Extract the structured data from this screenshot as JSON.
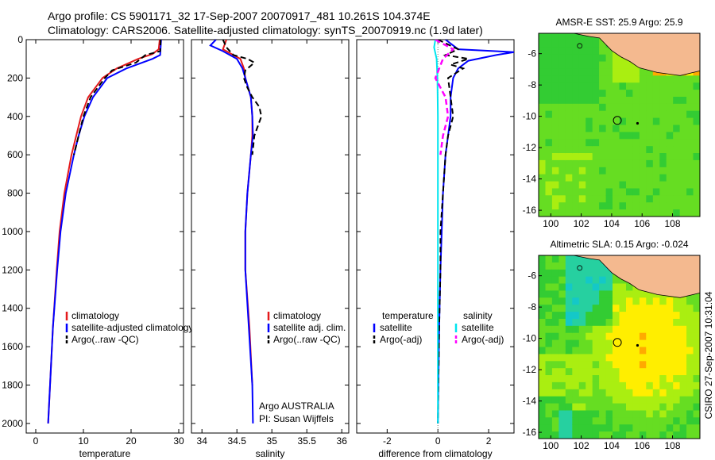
{
  "header": {
    "line1": "Argo profile: CS 5901171_32 17-Sep-2007 20070917_481 10.261S 104.374E",
    "line2": "Climatology: CARS2006. Satellite-adjusted climatology: synTS_20070919.nc (1.9d later)"
  },
  "colors": {
    "climatology": "#e41a1c",
    "satellite": "#0000ff",
    "argo": "#000000",
    "salinity_satellite": "#00e5ee",
    "salinity_argo": "#ff00ff",
    "land": "#f4b98f",
    "sea": "#22cc22"
  },
  "chart_data": [
    {
      "type": "line",
      "id": "temperature",
      "xlabel": "temperature",
      "ylabel": "",
      "xlim": [
        -2,
        31
      ],
      "ylim": [
        2050,
        0
      ],
      "xticks": [
        0,
        10,
        20,
        30
      ],
      "yticks": [
        0,
        200,
        400,
        600,
        800,
        1000,
        1200,
        1400,
        1600,
        1800,
        2000
      ],
      "legend": {
        "placement": "lower-right",
        "entries": [
          "climatology",
          "satellite-adjusted climatology",
          "Argo(..raw -QC)"
        ]
      },
      "series": [
        {
          "name": "climatology",
          "style": "solid",
          "depth": [
            0,
            50,
            75,
            100,
            150,
            200,
            300,
            400,
            500,
            600,
            800,
            1000,
            1200,
            1500,
            1800,
            2000
          ],
          "values": [
            26.0,
            25.8,
            24.5,
            21.5,
            17.0,
            14.0,
            11.0,
            9.5,
            8.5,
            7.5,
            6.0,
            5.0,
            4.4,
            3.6,
            3.0,
            2.6
          ]
        },
        {
          "name": "satellite-adjusted climatology",
          "style": "solid",
          "depth": [
            0,
            80,
            100,
            150,
            200,
            300,
            400,
            500,
            600,
            800,
            1000,
            1200,
            1500,
            1800,
            2000
          ],
          "values": [
            26.3,
            26.1,
            24.5,
            19.0,
            15.0,
            12.0,
            10.2,
            9.0,
            8.0,
            6.3,
            5.2,
            4.5,
            3.6,
            3.0,
            2.6
          ]
        },
        {
          "name": "Argo(..raw -QC)",
          "style": "dashed",
          "depth": [
            0,
            60,
            80,
            120,
            160,
            200,
            300,
            400,
            500,
            600
          ],
          "values": [
            26.2,
            26.1,
            23.0,
            21.0,
            16.0,
            14.5,
            11.5,
            10.0,
            9.0,
            8.0
          ]
        }
      ]
    },
    {
      "type": "line",
      "id": "salinity",
      "xlabel": "salinity",
      "ylabel": "",
      "xlim": [
        33.85,
        36.1
      ],
      "ylim": [
        2050,
        0
      ],
      "xticks": [
        34,
        34.5,
        35,
        35.5,
        36
      ],
      "yticks": [
        0,
        200,
        400,
        600,
        800,
        1000,
        1200,
        1400,
        1600,
        1800,
        2000
      ],
      "legend": {
        "placement": "lower-right",
        "entries": [
          "climatology",
          "satellite adj. clim.",
          "Argo(..raw -QC)"
        ]
      },
      "annotation": [
        "Argo AUSTRALIA",
        "PI: Susan Wijffels"
      ],
      "series": [
        {
          "name": "climatology",
          "style": "solid",
          "depth": [
            0,
            50,
            100,
            150,
            200,
            300,
            400,
            500,
            600,
            800,
            1000,
            1200,
            1500,
            1800
          ],
          "values": [
            34.35,
            34.3,
            34.55,
            34.6,
            34.62,
            34.7,
            34.72,
            34.72,
            34.7,
            34.65,
            34.62,
            34.62,
            34.68,
            34.72
          ]
        },
        {
          "name": "satellite adj. clim.",
          "style": "solid",
          "depth": [
            0,
            30,
            60,
            100,
            150,
            200,
            300,
            400,
            500,
            600,
            800,
            1000,
            1200,
            1500,
            1800,
            2000
          ],
          "values": [
            34.2,
            34.12,
            34.3,
            34.5,
            34.58,
            34.62,
            34.7,
            34.72,
            34.73,
            34.7,
            34.65,
            34.62,
            34.62,
            34.67,
            34.72,
            34.73
          ]
        },
        {
          "name": "Argo(..raw -QC)",
          "style": "dashed",
          "depth": [
            0,
            40,
            80,
            100,
            120,
            160,
            200,
            250,
            300,
            350,
            400,
            450,
            500,
            600
          ],
          "values": [
            34.3,
            34.35,
            34.45,
            34.65,
            34.75,
            34.62,
            34.6,
            34.65,
            34.72,
            34.82,
            34.85,
            34.8,
            34.75,
            34.72
          ]
        }
      ]
    },
    {
      "type": "line",
      "id": "difference",
      "xlabel": "difference from climatology",
      "ylabel": "",
      "xlim": [
        -3.2,
        3
      ],
      "ylim": [
        2050,
        0
      ],
      "xticks": [
        -2,
        0,
        2
      ],
      "yticks": [
        0,
        200,
        400,
        600,
        800,
        1000,
        1200,
        1400,
        1600,
        1800,
        2000
      ],
      "legend": {
        "placement": "lower-center",
        "headers": [
          "temperature",
          "salinity"
        ],
        "entries": [
          "satellite",
          "Argo(-adj)",
          "satellite",
          "Argo(-adj)"
        ]
      },
      "series": [
        {
          "name": "temperature satellite",
          "style": "solid",
          "depth": [
            0,
            50,
            65,
            80,
            110,
            150,
            200,
            300,
            400,
            500,
            600,
            800,
            1000,
            1200,
            1500,
            1800,
            2000
          ],
          "values": [
            0.3,
            0.8,
            3.0,
            2.3,
            1.2,
            0.8,
            0.6,
            0.5,
            0.5,
            0.4,
            0.3,
            0.2,
            0.15,
            0.1,
            0.05,
            0.02,
            0.0
          ]
        },
        {
          "name": "temperature Argo(-adj)",
          "style": "dashed",
          "depth": [
            0,
            50,
            80,
            100,
            130,
            150,
            200,
            300,
            400,
            500,
            600,
            800,
            1000,
            1200,
            1500,
            1800,
            2000
          ],
          "values": [
            0.0,
            0.8,
            0.3,
            1.2,
            0.5,
            1.0,
            0.4,
            0.5,
            0.6,
            0.4,
            0.3,
            0.2,
            0.1,
            0.1,
            0.05,
            0.02,
            0.0
          ]
        },
        {
          "name": "salinity satellite",
          "style": "solid",
          "depth": [
            0,
            40,
            100,
            200,
            400,
            600,
            800,
            1000,
            1500,
            2000
          ],
          "values": [
            -0.1,
            -0.15,
            -0.05,
            -0.02,
            0.0,
            0.0,
            0.0,
            0.0,
            0.0,
            0.0
          ]
        },
        {
          "name": "salinity Argo(-adj)",
          "style": "dashed",
          "depth": [
            0,
            50,
            100,
            200,
            300,
            400,
            500,
            600
          ],
          "values": [
            -0.1,
            0.6,
            0.2,
            -0.1,
            0.3,
            0.4,
            0.2,
            0.1
          ]
        }
      ]
    },
    {
      "type": "heatmap",
      "id": "sst-map",
      "title": "AMSR-E SST: 25.9 Argo: 25.9",
      "xlim": [
        99.2,
        109.8
      ],
      "ylim": [
        -16.4,
        -4.7
      ],
      "xticks": [
        100,
        102,
        104,
        106,
        108
      ],
      "yticks": [
        -6,
        -8,
        -10,
        -12,
        -14,
        -16
      ],
      "marker": {
        "lon": 104.374,
        "lat": -10.261
      },
      "palette": [
        "#14c8c8",
        "#26d0a0",
        "#33cc33",
        "#66dd22",
        "#aaee11",
        "#ffee00",
        "#ffaa00"
      ]
    },
    {
      "type": "heatmap",
      "id": "sla-map",
      "title": "Altimetric SLA: 0.15 Argo: -0.024",
      "xlim": [
        99.2,
        109.8
      ],
      "ylim": [
        -16.4,
        -4.7
      ],
      "xticks": [
        100,
        102,
        104,
        106,
        108
      ],
      "yticks": [
        -6,
        -8,
        -10,
        -12,
        -14,
        -16
      ],
      "marker": {
        "lon": 104.374,
        "lat": -10.261
      },
      "palette": [
        "#14c8c8",
        "#26d0a0",
        "#33cc33",
        "#66dd22",
        "#aaee11",
        "#ffee00",
        "#ffaa00"
      ]
    }
  ],
  "side_label": "CSIRO 27-Sep-2007 10:31:04"
}
